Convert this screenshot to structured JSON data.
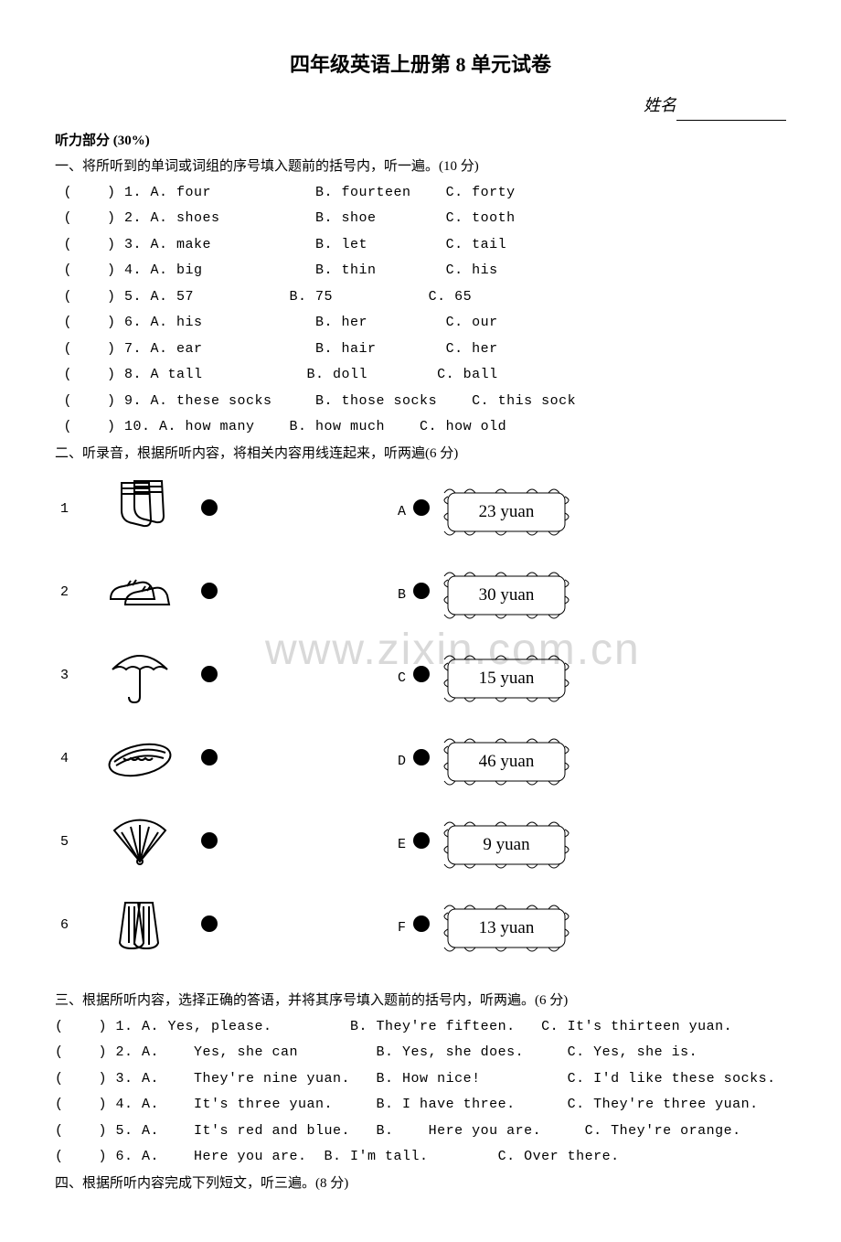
{
  "title": "四年级英语上册第 8 单元试卷",
  "name_label": "姓名",
  "listening_header": "听力部分 (30%)",
  "watermark_text": "www.zixin.com.cn",
  "section1": {
    "heading": "一、将所听到的单词或词组的序号填入题前的括号内，听一遍。(10 分)",
    "items": [
      {
        "n": "1",
        "a": "four",
        "b": "fourteen",
        "c": "forty"
      },
      {
        "n": "2",
        "a": "shoes",
        "b": "shoe",
        "c": "tooth"
      },
      {
        "n": "3",
        "a": "make",
        "b": "let",
        "c": "tail"
      },
      {
        "n": "4",
        "a": "big",
        "b": "thin",
        "c": "his"
      },
      {
        "n": "5",
        "a": "57",
        "b": "75",
        "c": "65",
        "tight": true
      },
      {
        "n": "6",
        "a": "his",
        "b": "her",
        "c": "our"
      },
      {
        "n": "7",
        "a": "ear",
        "b": "hair",
        "c": "her"
      },
      {
        "n": "8",
        "a": "tall",
        "b": "doll",
        "c": "ball",
        "nodot": true
      },
      {
        "n": "9",
        "a": "these socks",
        "b": "those socks",
        "c": "this sock",
        "wide": true
      },
      {
        "n": "10",
        "a": "how many",
        "b": "how much",
        "c": "how old",
        "wide2": true
      }
    ]
  },
  "section2": {
    "heading": "二、听录音，根据所听内容，将相关内容用线连起来，听两遍(6 分)",
    "left": [
      "1",
      "2",
      "3",
      "4",
      "5",
      "6"
    ],
    "letters": [
      "A",
      "B",
      "C",
      "D",
      "E",
      "F"
    ],
    "prices": [
      "23 yuan",
      "30 yuan",
      "15 yuan",
      "46 yuan",
      "9 yuan",
      "13 yuan"
    ],
    "icons": [
      "socks",
      "shoes",
      "umbrella",
      "hotdog",
      "fan",
      "skirt"
    ]
  },
  "section3": {
    "heading": "三、根据所听内容，选择正确的答语，并将其序号填入题前的括号内，听两遍。(6 分)",
    "items": [
      {
        "n": "1",
        "a": "Yes, please.",
        "b": "They're fifteen.",
        "c": "It's thirteen yuan.",
        "pad": ""
      },
      {
        "n": "2",
        "a": "Yes, she can",
        "b": "Yes, she does.",
        "c": "Yes, she is.",
        "pad": "   "
      },
      {
        "n": "3",
        "a": "They're nine yuan.",
        "b": "How nice!",
        "c": "I'd like these socks.",
        "pad": "   "
      },
      {
        "n": "4",
        "a": "It's three yuan.",
        "b": "I have three.",
        "c": "They're three yuan.",
        "pad": "   "
      },
      {
        "n": "5",
        "a": "It's red and blue.",
        "b": "Here you are.",
        "c": "They're orange.",
        "pad": "   ",
        "bpad": "   "
      },
      {
        "n": "6",
        "a": "Here you are.",
        "b": "I'm tall.",
        "c": "Over there.",
        "pad": "   ",
        "short": true
      }
    ]
  },
  "section4_heading": "四、根据所听内容完成下列短文，听三遍。(8 分)",
  "colors": {
    "text": "#000000",
    "bg": "#ffffff",
    "watermark": "#d9d9d9"
  }
}
